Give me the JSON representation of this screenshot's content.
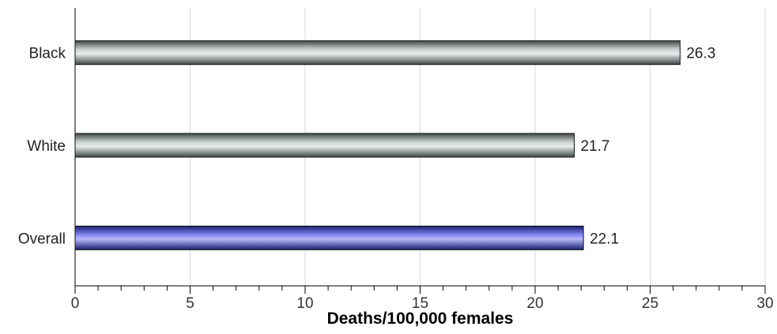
{
  "chart_data": {
    "type": "bar",
    "orientation": "horizontal",
    "categories": [
      "Black",
      "White",
      "Overall"
    ],
    "values": [
      26.3,
      21.7,
      22.1
    ],
    "data_labels": [
      "26.3",
      "21.7",
      "22.1"
    ],
    "colors": [
      "#8f9a9a",
      "#8f9a9a",
      "#4b4fc8"
    ],
    "title": "",
    "xlabel": "Deaths/100,000 females",
    "ylabel": "",
    "xlim": [
      0,
      30
    ],
    "x_ticks": [
      "0",
      "5",
      "10",
      "15",
      "20",
      "25",
      "30"
    ],
    "grid": true
  }
}
